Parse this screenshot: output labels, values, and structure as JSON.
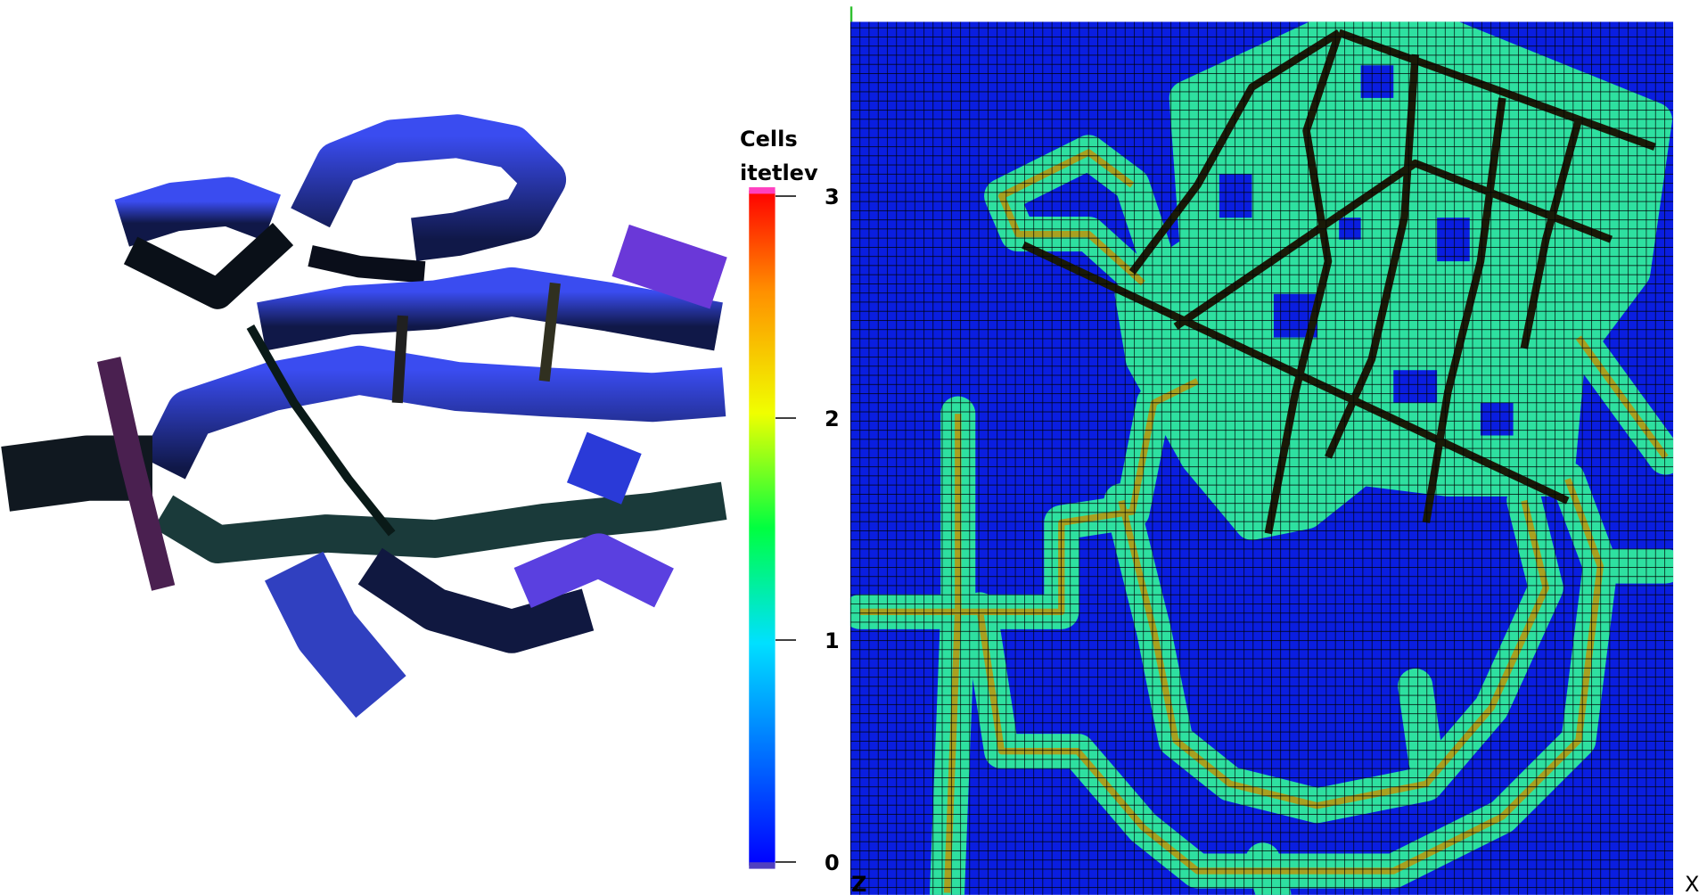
{
  "colorbar": {
    "title": "Cells",
    "variable": "itetlev",
    "range": [
      0,
      3
    ],
    "ticks": [
      0,
      1,
      2,
      3
    ]
  },
  "axes": {
    "vertical_label": "Z",
    "horizontal_label": "X"
  }
}
